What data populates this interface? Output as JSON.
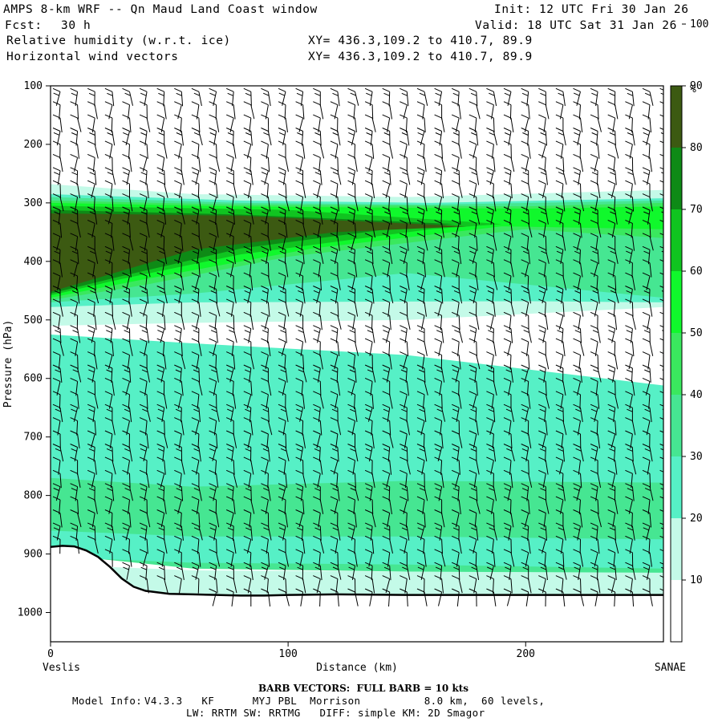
{
  "header": {
    "title": "AMPS 8-km WRF -- Qn Maud Land Coast window",
    "init": "Init: 12 UTC Fri 30 Jan 26",
    "fcst_label": "Fcst:",
    "fcst_value": "30 h",
    "valid": "Valid: 18 UTC Sat 31 Jan 26",
    "field1": "Relative humidity (w.r.t. ice)",
    "field2": "Horizontal wind vectors",
    "xy1": "XY= 436.3,109.2 to 410.7, 89.9",
    "xy2": "XY= 436.3,109.2 to 410.7, 89.9"
  },
  "chart_data": {
    "type": "heatmap",
    "title": "Relative humidity (w.r.t. ice) cross section with horizontal wind vectors",
    "xlabel": "Distance (km)",
    "ylabel": "Pressure (hPa)",
    "xlim": [
      0,
      258
    ],
    "ylim": [
      1050,
      100
    ],
    "x_ticks": [
      0,
      100,
      200
    ],
    "y_ticks": [
      100,
      200,
      300,
      400,
      500,
      600,
      700,
      800,
      900,
      1000
    ],
    "x_start_label": "Veslis",
    "x_end_label": "SANAE",
    "colorbar": {
      "unit": "%",
      "ticks": [
        10,
        20,
        30,
        40,
        50,
        60,
        70,
        80,
        90,
        100
      ],
      "levels": [
        {
          "min": 0,
          "max": 30,
          "color": "#ffffff"
        },
        {
          "min": 30,
          "max": 40,
          "color": "#c4fae8"
        },
        {
          "min": 40,
          "max": 50,
          "color": "#56f0c6"
        },
        {
          "min": 50,
          "max": 60,
          "color": "#46e692"
        },
        {
          "min": 60,
          "max": 70,
          "color": "#3ae85e"
        },
        {
          "min": 70,
          "max": 80,
          "color": "#10f82c"
        },
        {
          "min": 80,
          "max": 90,
          "color": "#10c420"
        },
        {
          "min": 90,
          "max": 100,
          "color": "#0e8a16"
        },
        {
          "min": 100,
          "max": 110,
          "color": "#3c5a12"
        }
      ]
    },
    "rh_regions": [
      {
        "rh": 35,
        "region": "moist layer edges 270-300 and 360-460 hPa"
      },
      {
        "rh": 55,
        "region": "moist layer 285-300 hPa"
      },
      {
        "rh": 75,
        "region": "moist layer core 300-340 hPa, all distances"
      },
      {
        "rh": 105,
        "region": "saturated wedge 335-460 hPa near 0 km, thinning to ~175 km"
      },
      {
        "rh": 25,
        "region": "dry pocket 560-610 hPa, 115-250 km"
      },
      {
        "rh": 45,
        "region": "mid layer 600-780 hPa"
      },
      {
        "rh": 55,
        "region": "lower layer 780-930 hPa"
      },
      {
        "rh": 35,
        "region": "near-surface layer 930-970 hPa"
      }
    ],
    "terrain": {
      "distance_km": [
        0,
        5,
        10,
        15,
        20,
        25,
        30,
        35,
        40,
        50,
        60,
        70,
        80,
        90,
        100,
        120,
        150,
        200,
        258
      ],
      "surface_pressure_hPa": [
        888,
        886,
        887,
        894,
        905,
        922,
        942,
        956,
        963,
        968,
        969,
        970,
        971,
        971,
        970,
        969,
        970,
        970,
        970
      ]
    },
    "wind_barbs": {
      "columns_km": [
        0,
        7.3,
        14.6,
        21.9,
        29.2,
        36.5,
        43.8,
        51.1,
        58.4,
        65.7,
        73,
        80.3,
        87.6,
        94.9,
        102.2,
        109.5,
        116.8,
        124.1,
        131.4,
        138.7,
        146,
        153.3,
        160.6,
        167.9,
        175.2,
        182.5,
        189.8,
        197.1,
        204.4,
        211.7,
        219,
        226.3,
        233.6,
        240.9,
        248.2,
        255.5
      ],
      "full_barb_kts": 10
    }
  },
  "footer": {
    "barb_note": "BARB VECTORS:  FULL BARB = 10 kts",
    "model_info_label": "Model Info:",
    "model_info_value": "V4.3.3   KF      MYJ PBL  Morrison          8.0 km,  60 levels,",
    "model_line2": "LW: RRTM SW: RRTMG   DIFF: simple KM: 2D Smagor"
  }
}
